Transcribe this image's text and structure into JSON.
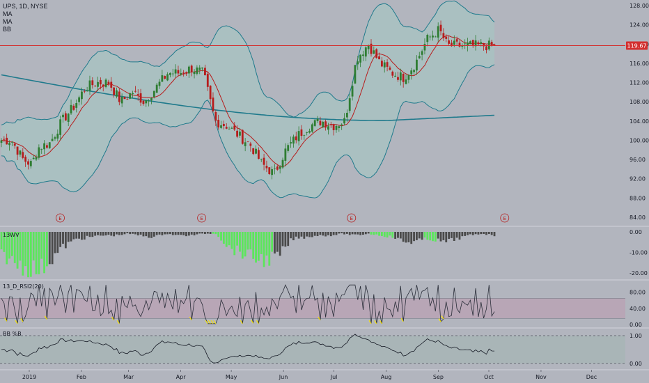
{
  "header": {
    "symbol_line": "UPS, 1D, NYSE",
    "indicators": [
      "MA",
      "MA",
      "BB"
    ]
  },
  "panes": {
    "price": {
      "y_ticks": [
        "128.00",
        "124.00",
        "120.00",
        "116.00",
        "112.00",
        "108.00",
        "104.00",
        "100.00",
        "96.00",
        "92.00",
        "88.00",
        "84.00"
      ],
      "last_price": "119.67",
      "earnings_marker": "E"
    },
    "volume": {
      "title": "13WV",
      "y_ticks": [
        "0.00",
        "-10.00",
        "-20.00"
      ]
    },
    "rsi": {
      "title": "13_D_RSI2(20)",
      "y_ticks": [
        "80.00",
        "40.00",
        "0.00"
      ]
    },
    "bbp": {
      "title": "BB %B",
      "y_ticks": [
        "1.00",
        "0.00"
      ]
    }
  },
  "x_axis": {
    "labels": [
      "2019",
      "Feb",
      "Mar",
      "Apr",
      "May",
      "Jun",
      "Jul",
      "Aug",
      "Sep",
      "Oct",
      "Nov",
      "Dec"
    ]
  },
  "colors": {
    "up": "#2e7d32",
    "down": "#b71c1c",
    "ma_fast": "#b71c1c",
    "ma_slow": "#1f7a8c",
    "bb_band": "#1f7a8c",
    "bb_fill": "#a7c4c2",
    "price_line": "#d32f2f",
    "wv_pos": "#5ce65c",
    "wv_neg": "#4a4a4a",
    "rsi_band": "#b9a2b4",
    "bbp_fill": "#a7b5b6"
  },
  "chart_data": [
    {
      "type": "candlestick",
      "title": "UPS, 1D, NYSE",
      "ylim": [
        84,
        128
      ],
      "last_price": 119.67,
      "closes": [
        {
          "x": "2019-01-02",
          "close": 100
        },
        {
          "x": "2019-01-09",
          "close": 96
        },
        {
          "x": "2019-01-14",
          "close": 95
        },
        {
          "x": "2019-01-18",
          "close": 98.5
        },
        {
          "x": "2019-01-25",
          "close": 99.5
        },
        {
          "x": "2019-02-01",
          "close": 104
        },
        {
          "x": "2019-02-08",
          "close": 107
        },
        {
          "x": "2019-02-15",
          "close": 111
        },
        {
          "x": "2019-02-22",
          "close": 112
        },
        {
          "x": "2019-03-01",
          "close": 112
        },
        {
          "x": "2019-03-08",
          "close": 108
        },
        {
          "x": "2019-03-15",
          "close": 110
        },
        {
          "x": "2019-03-22",
          "close": 108
        },
        {
          "x": "2019-03-29",
          "close": 111
        },
        {
          "x": "2019-04-05",
          "close": 114
        },
        {
          "x": "2019-04-12",
          "close": 114
        },
        {
          "x": "2019-04-19",
          "close": 115
        },
        {
          "x": "2019-04-26",
          "close": 114
        },
        {
          "x": "2019-05-03",
          "close": 104
        },
        {
          "x": "2019-05-10",
          "close": 103
        },
        {
          "x": "2019-05-17",
          "close": 101
        },
        {
          "x": "2019-05-24",
          "close": 99
        },
        {
          "x": "2019-05-31",
          "close": 95
        },
        {
          "x": "2019-06-07",
          "close": 93
        },
        {
          "x": "2019-06-14",
          "close": 98
        },
        {
          "x": "2019-06-21",
          "close": 101
        },
        {
          "x": "2019-06-28",
          "close": 103
        },
        {
          "x": "2019-07-05",
          "close": 104
        },
        {
          "x": "2019-07-12",
          "close": 103
        },
        {
          "x": "2019-07-19",
          "close": 104
        },
        {
          "x": "2019-07-26",
          "close": 117
        },
        {
          "x": "2019-08-02",
          "close": 120
        },
        {
          "x": "2019-08-09",
          "close": 116
        },
        {
          "x": "2019-08-16",
          "close": 114
        },
        {
          "x": "2019-08-23",
          "close": 113
        },
        {
          "x": "2019-08-30",
          "close": 116
        },
        {
          "x": "2019-09-06",
          "close": 121
        },
        {
          "x": "2019-09-13",
          "close": 123
        },
        {
          "x": "2019-09-18",
          "close": 119.67
        }
      ]
    },
    {
      "type": "bar",
      "title": "13WV",
      "ylim": [
        -22,
        0
      ],
      "series_note": "negative values; green = pullback phase, dark = other",
      "values": [
        -12,
        -18,
        -20,
        -22,
        -15,
        -8,
        -4,
        -3,
        -2,
        -2,
        -1,
        -2,
        -3,
        -1,
        -2,
        -2,
        -1,
        -1,
        -9,
        -12,
        -15,
        -16,
        -14,
        -4,
        -3,
        -2,
        -2,
        -1,
        -2,
        -1,
        -2,
        -3,
        -6,
        -5,
        -4,
        -6,
        -4,
        -2,
        -1,
        -2
      ]
    },
    {
      "type": "line",
      "title": "13_D_RSI2(20)",
      "ylim": [
        0,
        100
      ],
      "band": [
        15,
        65
      ]
    },
    {
      "type": "line",
      "title": "BB %B",
      "ylim": [
        -0.1,
        1.1
      ],
      "band": [
        0,
        1
      ]
    }
  ]
}
